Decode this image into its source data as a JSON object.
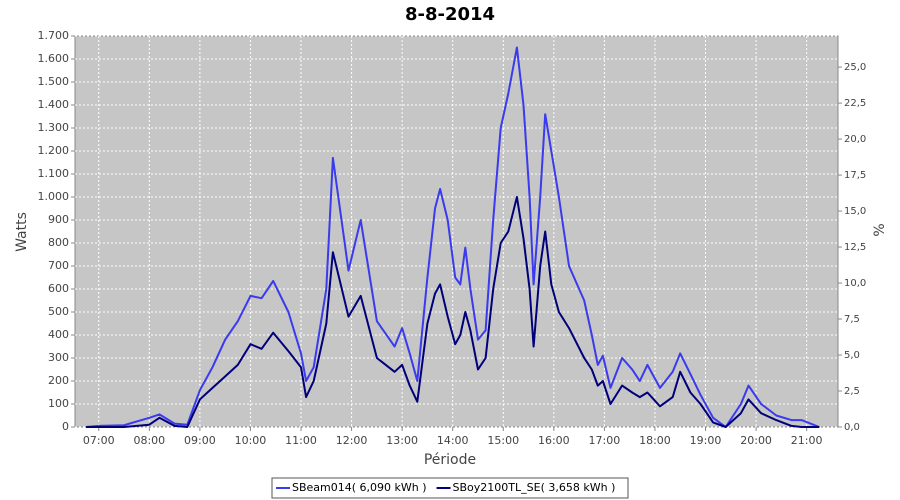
{
  "chart_data": {
    "type": "line",
    "title": "8-8-2014",
    "x_label": "Période",
    "y_label": "Watts",
    "y2_label": "%",
    "x": [
      6.75,
      7,
      7.5,
      8,
      8.2,
      8.5,
      8.75,
      9,
      9.25,
      9.5,
      9.75,
      10,
      10.22,
      10.45,
      10.75,
      11,
      11.1,
      11.25,
      11.5,
      11.63,
      11.94,
      12.18,
      12.5,
      12.85,
      13,
      13.15,
      13.3,
      13.5,
      13.65,
      13.75,
      13.9,
      14.05,
      14.15,
      14.25,
      14.35,
      14.5,
      14.65,
      14.8,
      14.95,
      15.1,
      15.27,
      15.4,
      15.52,
      15.6,
      15.73,
      15.83,
      15.95,
      16.1,
      16.3,
      16.6,
      16.75,
      16.87,
      16.97,
      17.12,
      17.35,
      17.55,
      17.7,
      17.85,
      18.1,
      18.35,
      18.5,
      18.7,
      18.9,
      19.15,
      19.4,
      19.7,
      19.85,
      20.1,
      20.4,
      20.7,
      20.9,
      21.25
    ],
    "series": [
      {
        "name": "SBeam014( 6,090 kWh )",
        "color": "#3a3aee",
        "values": [
          0,
          5,
          8,
          40,
          55,
          15,
          10,
          160,
          260,
          380,
          460,
          570,
          560,
          635,
          500,
          320,
          200,
          260,
          600,
          1170,
          680,
          900,
          460,
          350,
          430,
          320,
          200,
          650,
          950,
          1035,
          900,
          650,
          620,
          780,
          600,
          380,
          420,
          900,
          1300,
          1450,
          1650,
          1400,
          1000,
          620,
          1000,
          1360,
          1200,
          1000,
          700,
          550,
          400,
          270,
          310,
          170,
          300,
          250,
          200,
          270,
          170,
          240,
          320,
          230,
          140,
          40,
          0,
          100,
          180,
          100,
          50,
          30,
          30,
          0
        ]
      },
      {
        "name": "SBoy2100TL_SE( 3,658 kWh )",
        "color": "#00007a",
        "values": [
          0,
          0,
          0,
          10,
          40,
          5,
          0,
          120,
          170,
          220,
          270,
          360,
          340,
          410,
          330,
          260,
          130,
          200,
          450,
          760,
          480,
          570,
          300,
          240,
          270,
          180,
          110,
          450,
          580,
          620,
          480,
          360,
          400,
          500,
          420,
          250,
          300,
          600,
          800,
          850,
          1000,
          820,
          600,
          350,
          700,
          850,
          620,
          500,
          430,
          300,
          250,
          180,
          200,
          100,
          180,
          150,
          130,
          150,
          90,
          130,
          240,
          150,
          100,
          20,
          0,
          60,
          120,
          60,
          30,
          5,
          0,
          0
        ]
      }
    ],
    "xlim": [
      6.53,
      21.62
    ],
    "xticks": [
      {
        "value": 7,
        "label": "07:00"
      },
      {
        "value": 8,
        "label": "08:00"
      },
      {
        "value": 9,
        "label": "09:00"
      },
      {
        "value": 10,
        "label": "10:00"
      },
      {
        "value": 11,
        "label": "11:00"
      },
      {
        "value": 12,
        "label": "12:00"
      },
      {
        "value": 13,
        "label": "13:00"
      },
      {
        "value": 14,
        "label": "14:00"
      },
      {
        "value": 15,
        "label": "15:00"
      },
      {
        "value": 16,
        "label": "16:00"
      },
      {
        "value": 17,
        "label": "17:00"
      },
      {
        "value": 18,
        "label": "18:00"
      },
      {
        "value": 19,
        "label": "19:00"
      },
      {
        "value": 20,
        "label": "20:00"
      },
      {
        "value": 21,
        "label": "21:00"
      }
    ],
    "ylim": [
      0,
      1700
    ],
    "yticks": [
      0,
      100,
      200,
      300,
      400,
      500,
      600,
      700,
      800,
      900,
      {
        "value": 1000,
        "label": "1.000"
      },
      {
        "value": 1100,
        "label": "1.100"
      },
      {
        "value": 1200,
        "label": "1.200"
      },
      {
        "value": 1300,
        "label": "1.300"
      },
      {
        "value": 1400,
        "label": "1.400"
      },
      {
        "value": 1500,
        "label": "1.500"
      },
      {
        "value": 1600,
        "label": "1.600"
      },
      {
        "value": 1700,
        "label": "1.700"
      }
    ],
    "y2lim": [
      0,
      27.16
    ],
    "y2ticks": [
      {
        "value": 0,
        "label": "0,0"
      },
      {
        "value": 2.5,
        "label": "2,5"
      },
      {
        "value": 5,
        "label": "5,0"
      },
      {
        "value": 7.5,
        "label": "7,5"
      },
      {
        "value": 10,
        "label": "10,0"
      },
      {
        "value": 12.5,
        "label": "12,5"
      },
      {
        "value": 15,
        "label": "15,0"
      },
      {
        "value": 17.5,
        "label": "17,5"
      },
      {
        "value": 20,
        "label": "20,0"
      },
      {
        "value": 22.5,
        "label": "22,5"
      },
      {
        "value": 25,
        "label": "25,0"
      }
    ],
    "grid": true,
    "legend": "bottom"
  }
}
